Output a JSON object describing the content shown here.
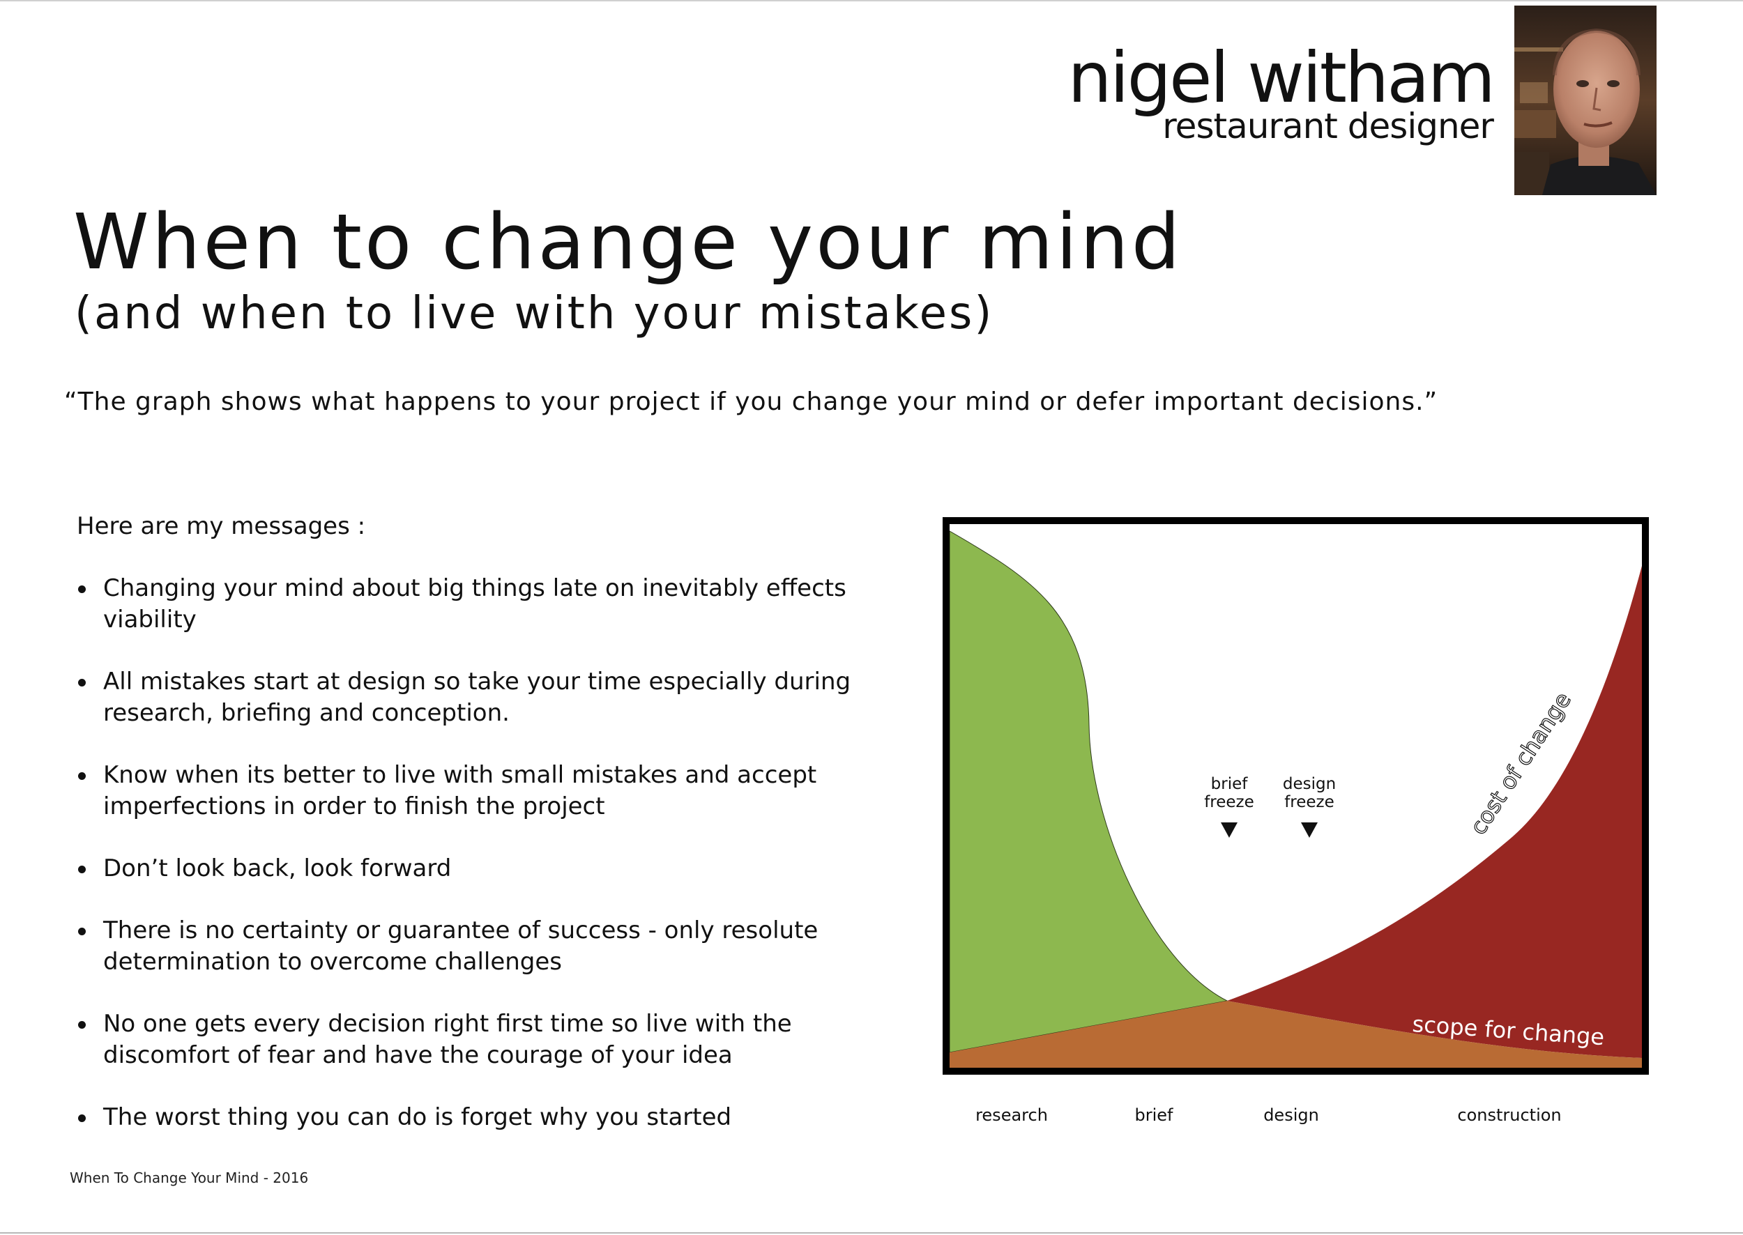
{
  "brand": {
    "name": "nigel witham",
    "role": "restaurant designer"
  },
  "title": "When to change your mind",
  "subtitle": "(and when to live with your mistakes)",
  "quote": "“The graph shows what happens to your project if you change your mind or defer important decisions.”",
  "messages": {
    "intro": "Here are my messages :",
    "items": [
      "Changing your mind about big things late on inevitably effects viability",
      "All mistakes start at design so take your time especially during research, briefing and conception.",
      "Know when its better to live with small mistakes and accept imperfections in order to finish the project",
      "Don’t look back, look forward",
      "There is no certainty or guarantee of success - only resolute determination to overcome challenges",
      "No one gets every decision right first time so live with the discomfort of fear and have the courage of your idea",
      "The worst thing you can do is forget why you started"
    ]
  },
  "graph": {
    "curve_labels": {
      "cost": "cost of change",
      "scope": "scope for change"
    },
    "markers": [
      {
        "line1": "brief",
        "line2": "freeze"
      },
      {
        "line1": "design",
        "line2": "freeze"
      }
    ],
    "phases": [
      "research",
      "brief",
      "design",
      "construction"
    ],
    "colors": {
      "green": "#8db84f",
      "red": "#982722",
      "orange": "#b96b34",
      "frame": "#000000"
    }
  },
  "footer": "When To Change Your Mind - 2016"
}
